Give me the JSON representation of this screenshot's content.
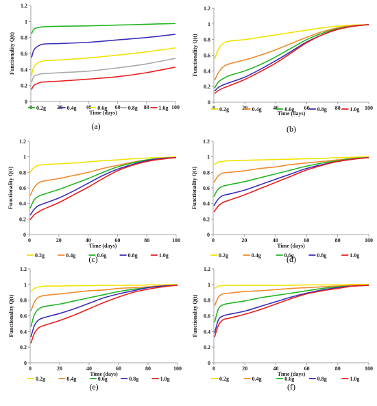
{
  "figure": {
    "colors": {
      "0.2g": "#f2e200",
      "0.4g": "#f08a2c",
      "0.6g": "#22b422",
      "0.8g": "#3a2eb8",
      "1.0g": "#e81e1e",
      "0.8g_panel_a": "#a8a8a8"
    }
  },
  "chart_data": [
    {
      "type": "line",
      "panel_label": "(a)",
      "xlabel": "Time (days)",
      "ylabel": "Functionality Q(t)",
      "xlim": [
        0,
        100
      ],
      "ylim": [
        0,
        1.2
      ],
      "xticks": [
        "0",
        "20",
        "40",
        "60",
        "80",
        "100"
      ],
      "yticks": [
        "0",
        "0.2",
        "0.4",
        "0.6",
        "0.8",
        "1",
        "1.2"
      ],
      "grid": false,
      "legend_position": "bottom",
      "x": [
        0.5,
        2,
        4,
        7,
        10,
        20,
        40,
        60,
        80,
        100
      ],
      "series": [
        {
          "name": "0.2g",
          "color": "#22b422",
          "values": [
            0.85,
            0.9,
            0.92,
            0.93,
            0.935,
            0.94,
            0.945,
            0.955,
            0.965,
            0.975
          ]
        },
        {
          "name": "0.4g",
          "color": "#3a2eb8",
          "values": [
            0.55,
            0.64,
            0.68,
            0.71,
            0.72,
            0.725,
            0.74,
            0.77,
            0.8,
            0.84
          ]
        },
        {
          "name": "0.6g",
          "color": "#f2e200",
          "values": [
            0.33,
            0.43,
            0.47,
            0.5,
            0.51,
            0.52,
            0.545,
            0.58,
            0.62,
            0.67
          ]
        },
        {
          "name": "0.8g",
          "color": "#a8a8a8",
          "values": [
            0.24,
            0.31,
            0.33,
            0.345,
            0.35,
            0.36,
            0.38,
            0.42,
            0.47,
            0.54
          ]
        },
        {
          "name": "1.0g",
          "color": "#e81e1e",
          "values": [
            0.15,
            0.2,
            0.22,
            0.24,
            0.245,
            0.255,
            0.28,
            0.31,
            0.36,
            0.43
          ]
        }
      ]
    },
    {
      "type": "line",
      "panel_label": "(b)",
      "xlabel": "Time (days)",
      "ylabel": "Functionality Q(t)",
      "xlim": [
        0,
        100
      ],
      "ylim": [
        0,
        1.2
      ],
      "xticks": [
        "0",
        "20",
        "40",
        "60",
        "80",
        "100"
      ],
      "yticks": [
        "0",
        "0.2",
        "0.4",
        "0.6",
        "0.8",
        "1",
        "1.2"
      ],
      "grid": false,
      "legend_position": "bottom",
      "x": [
        0.5,
        3,
        6,
        10,
        20,
        30,
        40,
        50,
        60,
        70,
        80,
        90,
        100
      ],
      "series": [
        {
          "name": "0.2g",
          "color": "#f2e200",
          "values": [
            0.55,
            0.68,
            0.75,
            0.78,
            0.8,
            0.83,
            0.86,
            0.89,
            0.92,
            0.95,
            0.97,
            0.985,
            0.99
          ]
        },
        {
          "name": "0.4g",
          "color": "#f08a2c",
          "values": [
            0.28,
            0.38,
            0.45,
            0.49,
            0.54,
            0.6,
            0.67,
            0.75,
            0.83,
            0.9,
            0.95,
            0.98,
            0.99
          ]
        },
        {
          "name": "0.6g",
          "color": "#22b422",
          "values": [
            0.18,
            0.26,
            0.3,
            0.34,
            0.4,
            0.48,
            0.58,
            0.69,
            0.8,
            0.88,
            0.94,
            0.97,
            0.99
          ]
        },
        {
          "name": "0.8g",
          "color": "#3a2eb8",
          "values": [
            0.14,
            0.19,
            0.22,
            0.25,
            0.32,
            0.42,
            0.53,
            0.65,
            0.77,
            0.86,
            0.93,
            0.97,
            0.99
          ]
        },
        {
          "name": "1.0g",
          "color": "#e81e1e",
          "values": [
            0.11,
            0.15,
            0.18,
            0.21,
            0.29,
            0.39,
            0.5,
            0.63,
            0.76,
            0.86,
            0.93,
            0.97,
            0.99
          ]
        }
      ]
    },
    {
      "type": "line",
      "panel_label": "(c)",
      "xlabel": "Time (days)",
      "ylabel": "Functionality Q(t)",
      "xlim": [
        0,
        100
      ],
      "ylim": [
        0,
        1.2
      ],
      "xticks": [
        "0",
        "20",
        "40",
        "60",
        "80",
        "100"
      ],
      "yticks": [
        "0",
        "0.2",
        "0.4",
        "0.6",
        "0.8",
        "1",
        "1.2"
      ],
      "grid": false,
      "legend_position": "bottom",
      "x": [
        0.5,
        3,
        6,
        10,
        20,
        30,
        40,
        50,
        60,
        70,
        80,
        90,
        100
      ],
      "series": [
        {
          "name": "0.2g",
          "color": "#f2e200",
          "values": [
            0.8,
            0.86,
            0.89,
            0.9,
            0.91,
            0.92,
            0.935,
            0.95,
            0.96,
            0.975,
            0.985,
            0.99,
            1.0
          ]
        },
        {
          "name": "0.4g",
          "color": "#f08a2c",
          "values": [
            0.5,
            0.6,
            0.66,
            0.69,
            0.72,
            0.76,
            0.8,
            0.85,
            0.89,
            0.93,
            0.96,
            0.98,
            0.99
          ]
        },
        {
          "name": "0.6g",
          "color": "#22b422",
          "values": [
            0.34,
            0.44,
            0.49,
            0.52,
            0.58,
            0.65,
            0.72,
            0.8,
            0.87,
            0.92,
            0.96,
            0.98,
            0.99
          ]
        },
        {
          "name": "0.8g",
          "color": "#3a2eb8",
          "values": [
            0.25,
            0.32,
            0.37,
            0.4,
            0.47,
            0.56,
            0.66,
            0.76,
            0.84,
            0.9,
            0.95,
            0.98,
            0.99
          ]
        },
        {
          "name": "1.0g",
          "color": "#e81e1e",
          "values": [
            0.19,
            0.25,
            0.29,
            0.33,
            0.41,
            0.51,
            0.61,
            0.72,
            0.82,
            0.89,
            0.94,
            0.97,
            0.99
          ]
        }
      ]
    },
    {
      "type": "line",
      "panel_label": "(d)",
      "xlabel": "Time (days)",
      "ylabel": "Functionality Q(t)",
      "xlim": [
        0,
        100
      ],
      "ylim": [
        0,
        1.2
      ],
      "xticks": [
        "0",
        "20",
        "40",
        "60",
        "80",
        "100"
      ],
      "yticks": [
        "0",
        "0.2",
        "0.4",
        "0.6",
        "0.8",
        "1",
        "1.2"
      ],
      "grid": false,
      "legend_position": "bottom",
      "x": [
        0.5,
        3,
        6,
        10,
        20,
        30,
        40,
        50,
        60,
        70,
        80,
        90,
        100
      ],
      "series": [
        {
          "name": "0.2g",
          "color": "#f2e200",
          "values": [
            0.9,
            0.93,
            0.94,
            0.95,
            0.955,
            0.96,
            0.965,
            0.97,
            0.975,
            0.98,
            0.99,
            0.995,
            1.0
          ]
        },
        {
          "name": "0.4g",
          "color": "#f08a2c",
          "values": [
            0.67,
            0.75,
            0.79,
            0.8,
            0.82,
            0.85,
            0.87,
            0.9,
            0.92,
            0.94,
            0.96,
            0.98,
            0.99
          ]
        },
        {
          "name": "0.6g",
          "color": "#22b422",
          "values": [
            0.49,
            0.58,
            0.62,
            0.64,
            0.68,
            0.73,
            0.78,
            0.83,
            0.88,
            0.92,
            0.95,
            0.98,
            0.99
          ]
        },
        {
          "name": "0.8g",
          "color": "#3a2eb8",
          "values": [
            0.37,
            0.45,
            0.5,
            0.52,
            0.57,
            0.64,
            0.71,
            0.78,
            0.85,
            0.9,
            0.94,
            0.97,
            0.99
          ]
        },
        {
          "name": "1.0g",
          "color": "#e81e1e",
          "values": [
            0.29,
            0.36,
            0.41,
            0.44,
            0.51,
            0.59,
            0.67,
            0.75,
            0.83,
            0.89,
            0.94,
            0.97,
            0.99
          ]
        }
      ]
    },
    {
      "type": "line",
      "panel_label": "(e)",
      "xlabel": "Time (days)",
      "ylabel": "Functionality Q(t)",
      "xlim": [
        0,
        100
      ],
      "ylim": [
        0,
        1.2
      ],
      "xticks": [
        "0",
        "20",
        "40",
        "60",
        "80",
        "100"
      ],
      "yticks": [
        "0",
        "0.2",
        "0.4",
        "0.6",
        "0.8",
        "1",
        "1.2"
      ],
      "grid": false,
      "legend_position": "bottom",
      "x": [
        0.5,
        3,
        6,
        10,
        20,
        30,
        40,
        50,
        60,
        70,
        80,
        90,
        100
      ],
      "series": [
        {
          "name": "0.2g",
          "color": "#f2e200",
          "values": [
            0.91,
            0.95,
            0.97,
            0.98,
            0.98,
            0.985,
            0.985,
            0.99,
            0.99,
            0.99,
            0.995,
            0.995,
            1.0
          ]
        },
        {
          "name": "0.4g",
          "color": "#f08a2c",
          "values": [
            0.66,
            0.78,
            0.84,
            0.86,
            0.88,
            0.9,
            0.92,
            0.93,
            0.95,
            0.96,
            0.97,
            0.985,
            0.99
          ]
        },
        {
          "name": "0.6g",
          "color": "#22b422",
          "values": [
            0.46,
            0.62,
            0.69,
            0.72,
            0.75,
            0.79,
            0.83,
            0.87,
            0.91,
            0.94,
            0.96,
            0.98,
            0.99
          ]
        },
        {
          "name": "0.8g",
          "color": "#3a2eb8",
          "values": [
            0.33,
            0.48,
            0.55,
            0.58,
            0.63,
            0.69,
            0.76,
            0.83,
            0.88,
            0.92,
            0.96,
            0.98,
            0.99
          ]
        },
        {
          "name": "1.0g",
          "color": "#e81e1e",
          "values": [
            0.25,
            0.38,
            0.45,
            0.48,
            0.54,
            0.61,
            0.69,
            0.77,
            0.84,
            0.9,
            0.94,
            0.97,
            0.99
          ]
        }
      ]
    },
    {
      "type": "line",
      "panel_label": "(f)",
      "xlabel": "Time (days)",
      "ylabel": "Functionality Q(t)",
      "xlim": [
        0,
        100
      ],
      "ylim": [
        0,
        1.2
      ],
      "xticks": [
        "0",
        "20",
        "40",
        "60",
        "80",
        "100"
      ],
      "yticks": [
        "0",
        "0.2",
        "0.4",
        "0.6",
        "0.8",
        "1",
        "1.2"
      ],
      "grid": false,
      "legend_position": "bottom",
      "x": [
        0.5,
        3,
        6,
        10,
        20,
        30,
        40,
        50,
        60,
        70,
        80,
        90,
        100
      ],
      "series": [
        {
          "name": "0.2g",
          "color": "#f2e200",
          "values": [
            0.95,
            0.98,
            0.985,
            0.99,
            0.99,
            0.99,
            0.99,
            0.99,
            0.995,
            0.995,
            0.995,
            1.0,
            1.0
          ]
        },
        {
          "name": "0.4g",
          "color": "#f08a2c",
          "values": [
            0.73,
            0.84,
            0.88,
            0.89,
            0.91,
            0.92,
            0.935,
            0.95,
            0.96,
            0.97,
            0.98,
            0.99,
            0.99
          ]
        },
        {
          "name": "0.6g",
          "color": "#22b422",
          "values": [
            0.52,
            0.69,
            0.74,
            0.76,
            0.79,
            0.83,
            0.86,
            0.89,
            0.92,
            0.95,
            0.97,
            0.98,
            0.99
          ]
        },
        {
          "name": "0.8g",
          "color": "#3a2eb8",
          "values": [
            0.38,
            0.55,
            0.6,
            0.62,
            0.66,
            0.72,
            0.78,
            0.84,
            0.89,
            0.93,
            0.96,
            0.98,
            0.99
          ]
        },
        {
          "name": "1.0g",
          "color": "#e81e1e",
          "values": [
            0.33,
            0.48,
            0.55,
            0.57,
            0.62,
            0.68,
            0.75,
            0.82,
            0.88,
            0.92,
            0.95,
            0.98,
            0.99
          ]
        }
      ]
    }
  ]
}
